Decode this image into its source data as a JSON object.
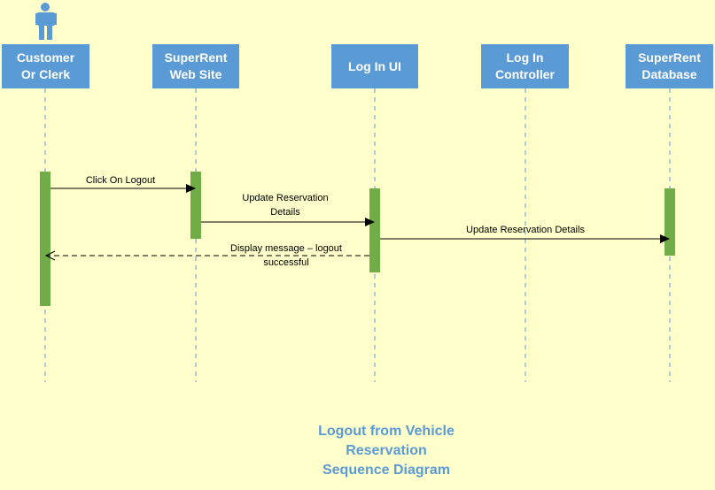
{
  "colors": {
    "background": "#FFFFCC",
    "lifeline_box": "#5B9BD5",
    "activation": "#70AD47",
    "title": "#5B9BD5"
  },
  "actor": {
    "icon": "person-icon"
  },
  "lifelines": [
    {
      "id": "customer",
      "label": "Customer Or Clerk"
    },
    {
      "id": "website",
      "label": "SuperRent Web Site"
    },
    {
      "id": "loginui",
      "label": "Log In UI"
    },
    {
      "id": "controller",
      "label": "Log In Controller"
    },
    {
      "id": "database",
      "label": "SuperRent Database"
    }
  ],
  "messages": [
    {
      "text": "Click On Logout",
      "from": "customer",
      "to": "website",
      "style": "solid"
    },
    {
      "text": "Update Reservation Details",
      "from": "website",
      "to": "loginui",
      "style": "solid"
    },
    {
      "text": "Update Reservation Details",
      "from": "loginui",
      "to": "database",
      "style": "solid"
    },
    {
      "text": "Display message – logout successful",
      "from": "loginui",
      "to": "customer",
      "style": "dashed"
    }
  ],
  "title": {
    "line1": "Logout from Vehicle",
    "line2": "Reservation",
    "line3": "Sequence Diagram"
  }
}
